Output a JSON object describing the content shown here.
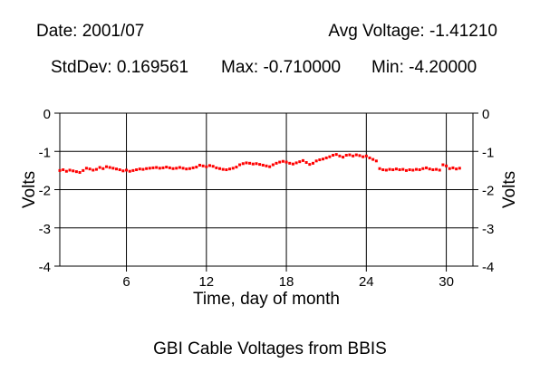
{
  "header": {
    "date": "Date: 2001/07",
    "avg": "Avg Voltage: -1.41210",
    "stddev": "StdDev: 0.169561",
    "max": "Max: -0.710000",
    "min": "Min: -4.20000"
  },
  "caption": "GBI Cable Voltages from BBIS",
  "chart_data": {
    "type": "scatter",
    "title": "",
    "xlabel": "Time, day of month",
    "ylabel": "Volts",
    "xlim": [
      1,
      32
    ],
    "ylim": [
      -4,
      0
    ],
    "x_ticks": [
      6,
      12,
      18,
      24,
      30
    ],
    "y_ticks": [
      0,
      -1,
      -2,
      -3,
      -4
    ],
    "grid": true,
    "marker_color": "#ff0000",
    "x": [
      1.0,
      1.25,
      1.5,
      1.75,
      2.0,
      2.25,
      2.5,
      2.75,
      3.0,
      3.25,
      3.5,
      3.75,
      4.0,
      4.25,
      4.5,
      4.75,
      5.0,
      5.25,
      5.5,
      5.75,
      6.0,
      6.25,
      6.5,
      6.75,
      7.0,
      7.25,
      7.5,
      7.75,
      8.0,
      8.25,
      8.5,
      8.75,
      9.0,
      9.25,
      9.5,
      9.75,
      10.0,
      10.25,
      10.5,
      10.75,
      11.0,
      11.25,
      11.5,
      11.75,
      12.0,
      12.25,
      12.5,
      12.75,
      13.0,
      13.25,
      13.5,
      13.75,
      14.0,
      14.25,
      14.5,
      14.75,
      15.0,
      15.25,
      15.5,
      15.75,
      16.0,
      16.25,
      16.5,
      16.75,
      17.0,
      17.25,
      17.5,
      17.75,
      18.0,
      18.25,
      18.5,
      18.75,
      19.0,
      19.25,
      19.5,
      19.75,
      20.0,
      20.25,
      20.5,
      20.75,
      21.0,
      21.25,
      21.5,
      21.75,
      22.0,
      22.25,
      22.5,
      22.75,
      23.0,
      23.25,
      23.5,
      23.75,
      24.0,
      24.25,
      24.5,
      24.75,
      25.0,
      25.25,
      25.5,
      25.75,
      26.0,
      26.25,
      26.5,
      26.75,
      27.0,
      27.25,
      27.5,
      27.75,
      28.0,
      28.25,
      28.5,
      28.75,
      29.0,
      29.25,
      29.5,
      29.75,
      30.0,
      30.25,
      30.5,
      30.75,
      31.0
    ],
    "y": [
      -1.5,
      -1.48,
      -1.52,
      -1.49,
      -1.51,
      -1.53,
      -1.55,
      -1.5,
      -1.44,
      -1.46,
      -1.49,
      -1.47,
      -1.42,
      -1.45,
      -1.4,
      -1.42,
      -1.44,
      -1.46,
      -1.48,
      -1.51,
      -1.49,
      -1.52,
      -1.5,
      -1.48,
      -1.46,
      -1.47,
      -1.45,
      -1.44,
      -1.43,
      -1.42,
      -1.44,
      -1.43,
      -1.41,
      -1.43,
      -1.45,
      -1.44,
      -1.42,
      -1.44,
      -1.46,
      -1.45,
      -1.43,
      -1.41,
      -1.36,
      -1.38,
      -1.4,
      -1.37,
      -1.39,
      -1.43,
      -1.45,
      -1.47,
      -1.48,
      -1.46,
      -1.44,
      -1.41,
      -1.35,
      -1.32,
      -1.3,
      -1.31,
      -1.33,
      -1.32,
      -1.34,
      -1.36,
      -1.38,
      -1.4,
      -1.35,
      -1.31,
      -1.28,
      -1.26,
      -1.28,
      -1.31,
      -1.33,
      -1.3,
      -1.27,
      -1.24,
      -1.29,
      -1.34,
      -1.31,
      -1.25,
      -1.22,
      -1.2,
      -1.17,
      -1.14,
      -1.1,
      -1.08,
      -1.12,
      -1.15,
      -1.1,
      -1.09,
      -1.12,
      -1.09,
      -1.11,
      -1.14,
      -1.12,
      -1.17,
      -1.21,
      -1.25,
      -1.45,
      -1.48,
      -1.49,
      -1.47,
      -1.48,
      -1.46,
      -1.48,
      -1.47,
      -1.5,
      -1.48,
      -1.49,
      -1.47,
      -1.48,
      -1.45,
      -1.43,
      -1.46,
      -1.48,
      -1.47,
      -1.49,
      -1.35,
      -1.38,
      -1.45,
      -1.43,
      -1.46,
      -1.44
    ]
  }
}
